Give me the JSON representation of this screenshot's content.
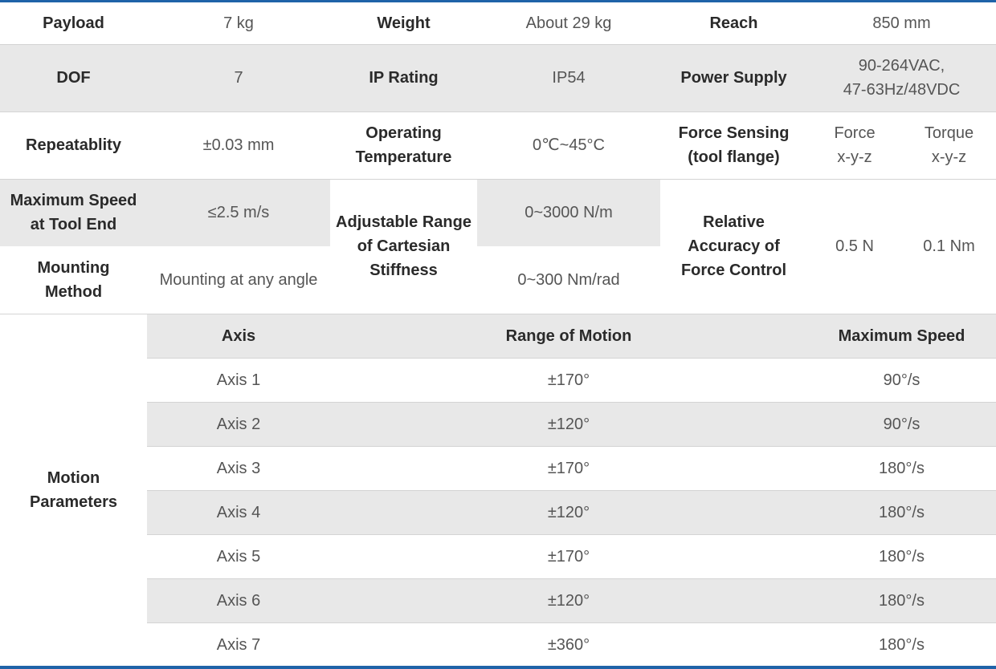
{
  "specs": {
    "payload": {
      "label": "Payload",
      "value": "7 kg"
    },
    "weight": {
      "label": "Weight",
      "value": "About 29 kg"
    },
    "reach": {
      "label": "Reach",
      "value": "850 mm"
    },
    "dof": {
      "label": "DOF",
      "value": "7"
    },
    "ip_rating": {
      "label": "IP Rating",
      "value": "IP54"
    },
    "power_supply": {
      "label": "Power Supply",
      "value_line1": "90-264VAC,",
      "value_line2": "47-63Hz/48VDC"
    },
    "repeatability": {
      "label": "Repeatablity",
      "value": "±0.03 mm"
    },
    "operating_temperature": {
      "label_line1": "Operating",
      "label_line2": "Temperature",
      "value": "0℃~45°C"
    },
    "force_sensing": {
      "label_line1": "Force Sensing",
      "label_line2": "(tool flange)",
      "force_line1": "Force",
      "force_line2": "x-y-z",
      "torque_line1": "Torque",
      "torque_line2": "x-y-z"
    },
    "max_speed_tool_end": {
      "label_line1": "Maximum Speed",
      "label_line2": "at Tool End",
      "value": "≤2.5 m/s"
    },
    "cartesian_stiffness": {
      "label_line1": "Adjustable Range",
      "label_line2": "of Cartesian",
      "label_line3": "Stiffness",
      "value_translational": "0~3000 N/m",
      "value_rotational": "0~300 Nm/rad"
    },
    "force_control_accuracy": {
      "label_line1": "Relative",
      "label_line2": "Accuracy of",
      "label_line3": "Force Control",
      "force_value": "0.5 N",
      "torque_value": "0.1 Nm"
    },
    "mounting_method": {
      "label_line1": "Mounting",
      "label_line2": "Method",
      "value": "Mounting at any angle"
    }
  },
  "motion": {
    "label_line1": "Motion",
    "label_line2": "Parameters",
    "headers": {
      "axis": "Axis",
      "range": "Range of Motion",
      "speed": "Maximum Speed"
    },
    "rows": [
      {
        "axis": "Axis 1",
        "range": "±170°",
        "speed": "90°/s"
      },
      {
        "axis": "Axis 2",
        "range": "±120°",
        "speed": "90°/s"
      },
      {
        "axis": "Axis 3",
        "range": "±170°",
        "speed": "180°/s"
      },
      {
        "axis": "Axis 4",
        "range": "±120°",
        "speed": "180°/s"
      },
      {
        "axis": "Axis 5",
        "range": "±170°",
        "speed": "180°/s"
      },
      {
        "axis": "Axis 6",
        "range": "±120°",
        "speed": "180°/s"
      },
      {
        "axis": "Axis 7",
        "range": "±360°",
        "speed": "180°/s"
      }
    ]
  },
  "colors": {
    "accent": "#1f63a8",
    "band": "#e8e8e8",
    "rule": "#d4d4d4"
  }
}
